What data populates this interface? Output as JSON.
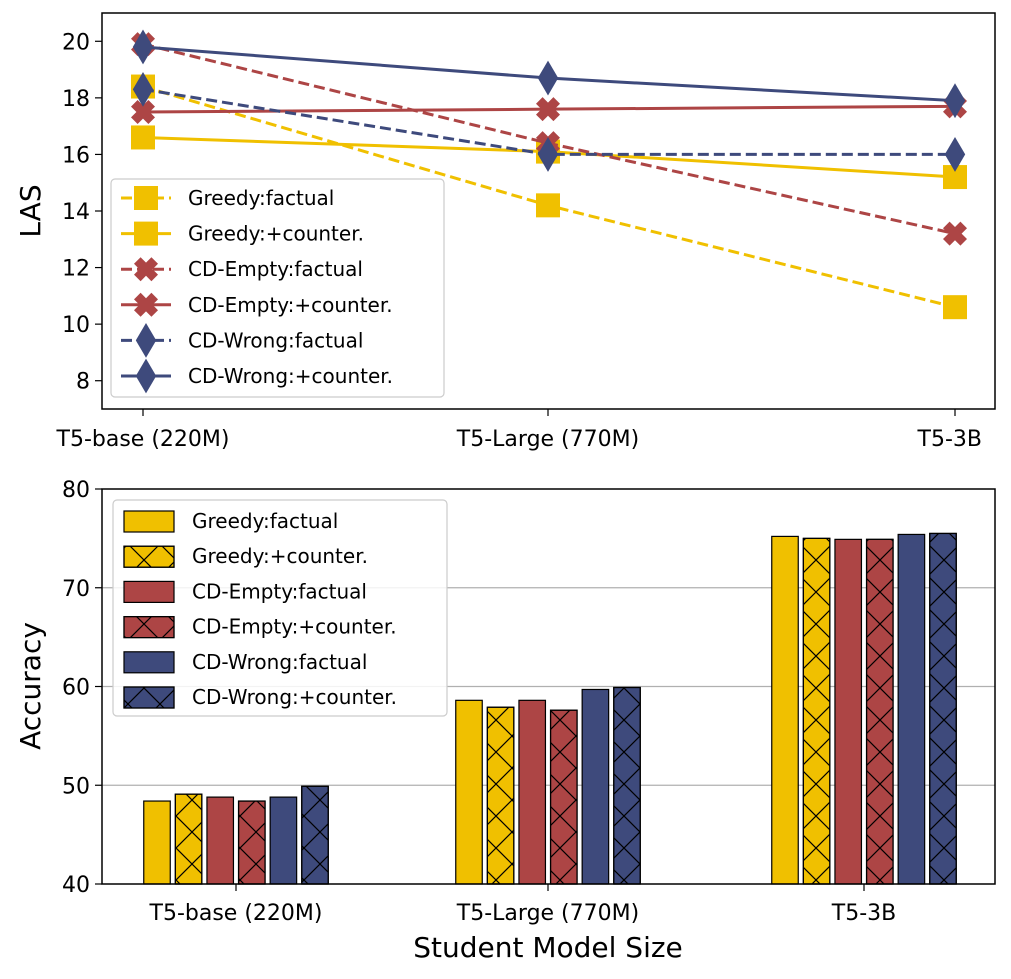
{
  "colors": {
    "greedy": "#f0c000",
    "cd_empty": "#ad4545",
    "cd_wrong": "#3e4a7c",
    "grid": "#b0b0b0",
    "frame": "#000000"
  },
  "chart_data": [
    {
      "type": "line",
      "title": "",
      "xlabel": "",
      "ylabel": "LAS",
      "categories": [
        "T5-base (220M)",
        "T5-Large (770M)",
        "T5-3B"
      ],
      "ylim": [
        7,
        21
      ],
      "yticks": [
        8,
        10,
        12,
        14,
        16,
        18,
        20
      ],
      "grid": false,
      "legend_position": "lower-left",
      "series": [
        {
          "name": "Greedy:factual",
          "color_key": "greedy",
          "linestyle": "dashed",
          "marker": "square",
          "values": [
            18.4,
            14.2,
            10.6
          ]
        },
        {
          "name": "Greedy:+counter.",
          "color_key": "greedy",
          "linestyle": "solid",
          "marker": "square",
          "values": [
            16.6,
            16.1,
            15.2
          ]
        },
        {
          "name": "CD-Empty:factual",
          "color_key": "cd_empty",
          "linestyle": "dashed",
          "marker": "x",
          "values": [
            19.9,
            16.4,
            13.2
          ]
        },
        {
          "name": "CD-Empty:+counter.",
          "color_key": "cd_empty",
          "linestyle": "solid",
          "marker": "x",
          "values": [
            17.5,
            17.6,
            17.7
          ]
        },
        {
          "name": "CD-Wrong:factual",
          "color_key": "cd_wrong",
          "linestyle": "dashed",
          "marker": "diamond",
          "values": [
            18.3,
            16.0,
            16.0
          ]
        },
        {
          "name": "CD-Wrong:+counter.",
          "color_key": "cd_wrong",
          "linestyle": "solid",
          "marker": "diamond",
          "values": [
            19.8,
            18.7,
            17.9
          ]
        }
      ]
    },
    {
      "type": "bar",
      "title": "",
      "xlabel": "Student Model Size",
      "ylabel": "Accuracy",
      "categories": [
        "T5-base (220M)",
        "T5-Large (770M)",
        "T5-3B"
      ],
      "ylim": [
        40,
        80
      ],
      "yticks": [
        40,
        50,
        60,
        70,
        80
      ],
      "grid": true,
      "legend_position": "upper-left",
      "series": [
        {
          "name": "Greedy:factual",
          "color_key": "greedy",
          "hatch": false,
          "values": [
            48.4,
            58.6,
            75.2
          ]
        },
        {
          "name": "Greedy:+counter.",
          "color_key": "greedy",
          "hatch": true,
          "values": [
            49.1,
            57.9,
            75.0
          ]
        },
        {
          "name": "CD-Empty:factual",
          "color_key": "cd_empty",
          "hatch": false,
          "values": [
            48.8,
            58.6,
            74.9
          ]
        },
        {
          "name": "CD-Empty:+counter.",
          "color_key": "cd_empty",
          "hatch": true,
          "values": [
            48.4,
            57.6,
            74.9
          ]
        },
        {
          "name": "CD-Wrong:factual",
          "color_key": "cd_wrong",
          "hatch": false,
          "values": [
            48.8,
            59.7,
            75.4
          ]
        },
        {
          "name": "CD-Wrong:+counter.",
          "color_key": "cd_wrong",
          "hatch": true,
          "values": [
            49.9,
            59.9,
            75.5
          ]
        }
      ]
    }
  ]
}
